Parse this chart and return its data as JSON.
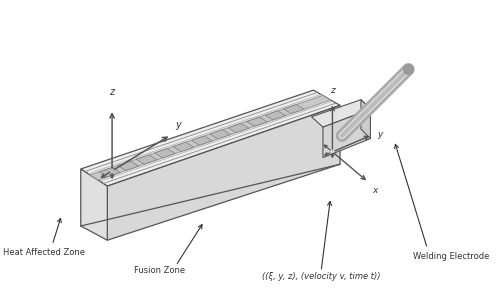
{
  "bg_color": "#ffffff",
  "line_color": "#555555",
  "dark_color": "#333333",
  "fill_color": "#e8e8e8",
  "fill_dark": "#d0d0d0",
  "fill_darker": "#c0c0c0",
  "labels": {
    "heat_affected": "Heat Affected Zone",
    "fusion": "Fusion Zone",
    "coords": "((ξ, y, z), (velocity v, time t))",
    "electrode": "Welding Electrode",
    "z1": "z",
    "y1": "y",
    "z2": "z",
    "y2": "y",
    "x2": "x"
  }
}
